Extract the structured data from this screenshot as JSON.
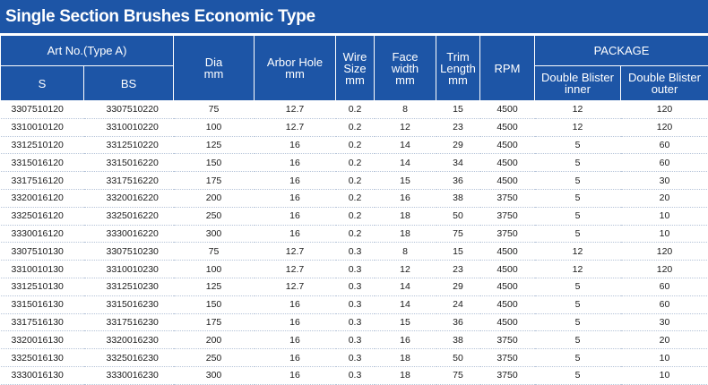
{
  "title": "Single Section Brushes Economic Type",
  "header": {
    "art_no": "Art No.(Type A)",
    "s": "S",
    "bs": "BS",
    "dia": [
      "Dia",
      "mm"
    ],
    "arbor": [
      "Arbor Hole",
      "mm"
    ],
    "wire": [
      "Wire",
      "Size",
      "mm"
    ],
    "face": [
      "Face",
      "width",
      "mm"
    ],
    "trim": [
      "Trim",
      "Length",
      "mm"
    ],
    "rpm": "RPM",
    "package": "PACKAGE",
    "inner": [
      "Double Blister",
      "inner"
    ],
    "outer": [
      "Double Blister",
      "outer"
    ]
  },
  "rows": [
    [
      "3307510120",
      "3307510220",
      "75",
      "12.7",
      "0.2",
      "8",
      "15",
      "4500",
      "12",
      "120"
    ],
    [
      "3310010120",
      "3310010220",
      "100",
      "12.7",
      "0.2",
      "12",
      "23",
      "4500",
      "12",
      "120"
    ],
    [
      "3312510120",
      "3312510220",
      "125",
      "16",
      "0.2",
      "14",
      "29",
      "4500",
      "5",
      "60"
    ],
    [
      "3315016120",
      "3315016220",
      "150",
      "16",
      "0.2",
      "14",
      "34",
      "4500",
      "5",
      "60"
    ],
    [
      "3317516120",
      "3317516220",
      "175",
      "16",
      "0.2",
      "15",
      "36",
      "4500",
      "5",
      "30"
    ],
    [
      "3320016120",
      "3320016220",
      "200",
      "16",
      "0.2",
      "16",
      "38",
      "3750",
      "5",
      "20"
    ],
    [
      "3325016120",
      "3325016220",
      "250",
      "16",
      "0.2",
      "18",
      "50",
      "3750",
      "5",
      "10"
    ],
    [
      "3330016120",
      "3330016220",
      "300",
      "16",
      "0.2",
      "18",
      "75",
      "3750",
      "5",
      "10"
    ],
    [
      "3307510130",
      "3307510230",
      "75",
      "12.7",
      "0.3",
      "8",
      "15",
      "4500",
      "12",
      "120"
    ],
    [
      "3310010130",
      "3310010230",
      "100",
      "12.7",
      "0.3",
      "12",
      "23",
      "4500",
      "12",
      "120"
    ],
    [
      "3312510130",
      "3312510230",
      "125",
      "12.7",
      "0.3",
      "14",
      "29",
      "4500",
      "5",
      "60"
    ],
    [
      "3315016130",
      "3315016230",
      "150",
      "16",
      "0.3",
      "14",
      "24",
      "4500",
      "5",
      "60"
    ],
    [
      "3317516130",
      "3317516230",
      "175",
      "16",
      "0.3",
      "15",
      "36",
      "4500",
      "5",
      "30"
    ],
    [
      "3320016130",
      "3320016230",
      "200",
      "16",
      "0.3",
      "16",
      "38",
      "3750",
      "5",
      "20"
    ],
    [
      "3325016130",
      "3325016230",
      "250",
      "16",
      "0.3",
      "18",
      "50",
      "3750",
      "5",
      "10"
    ],
    [
      "3330016130",
      "3330016230",
      "300",
      "16",
      "0.3",
      "18",
      "75",
      "3750",
      "5",
      "10"
    ]
  ]
}
